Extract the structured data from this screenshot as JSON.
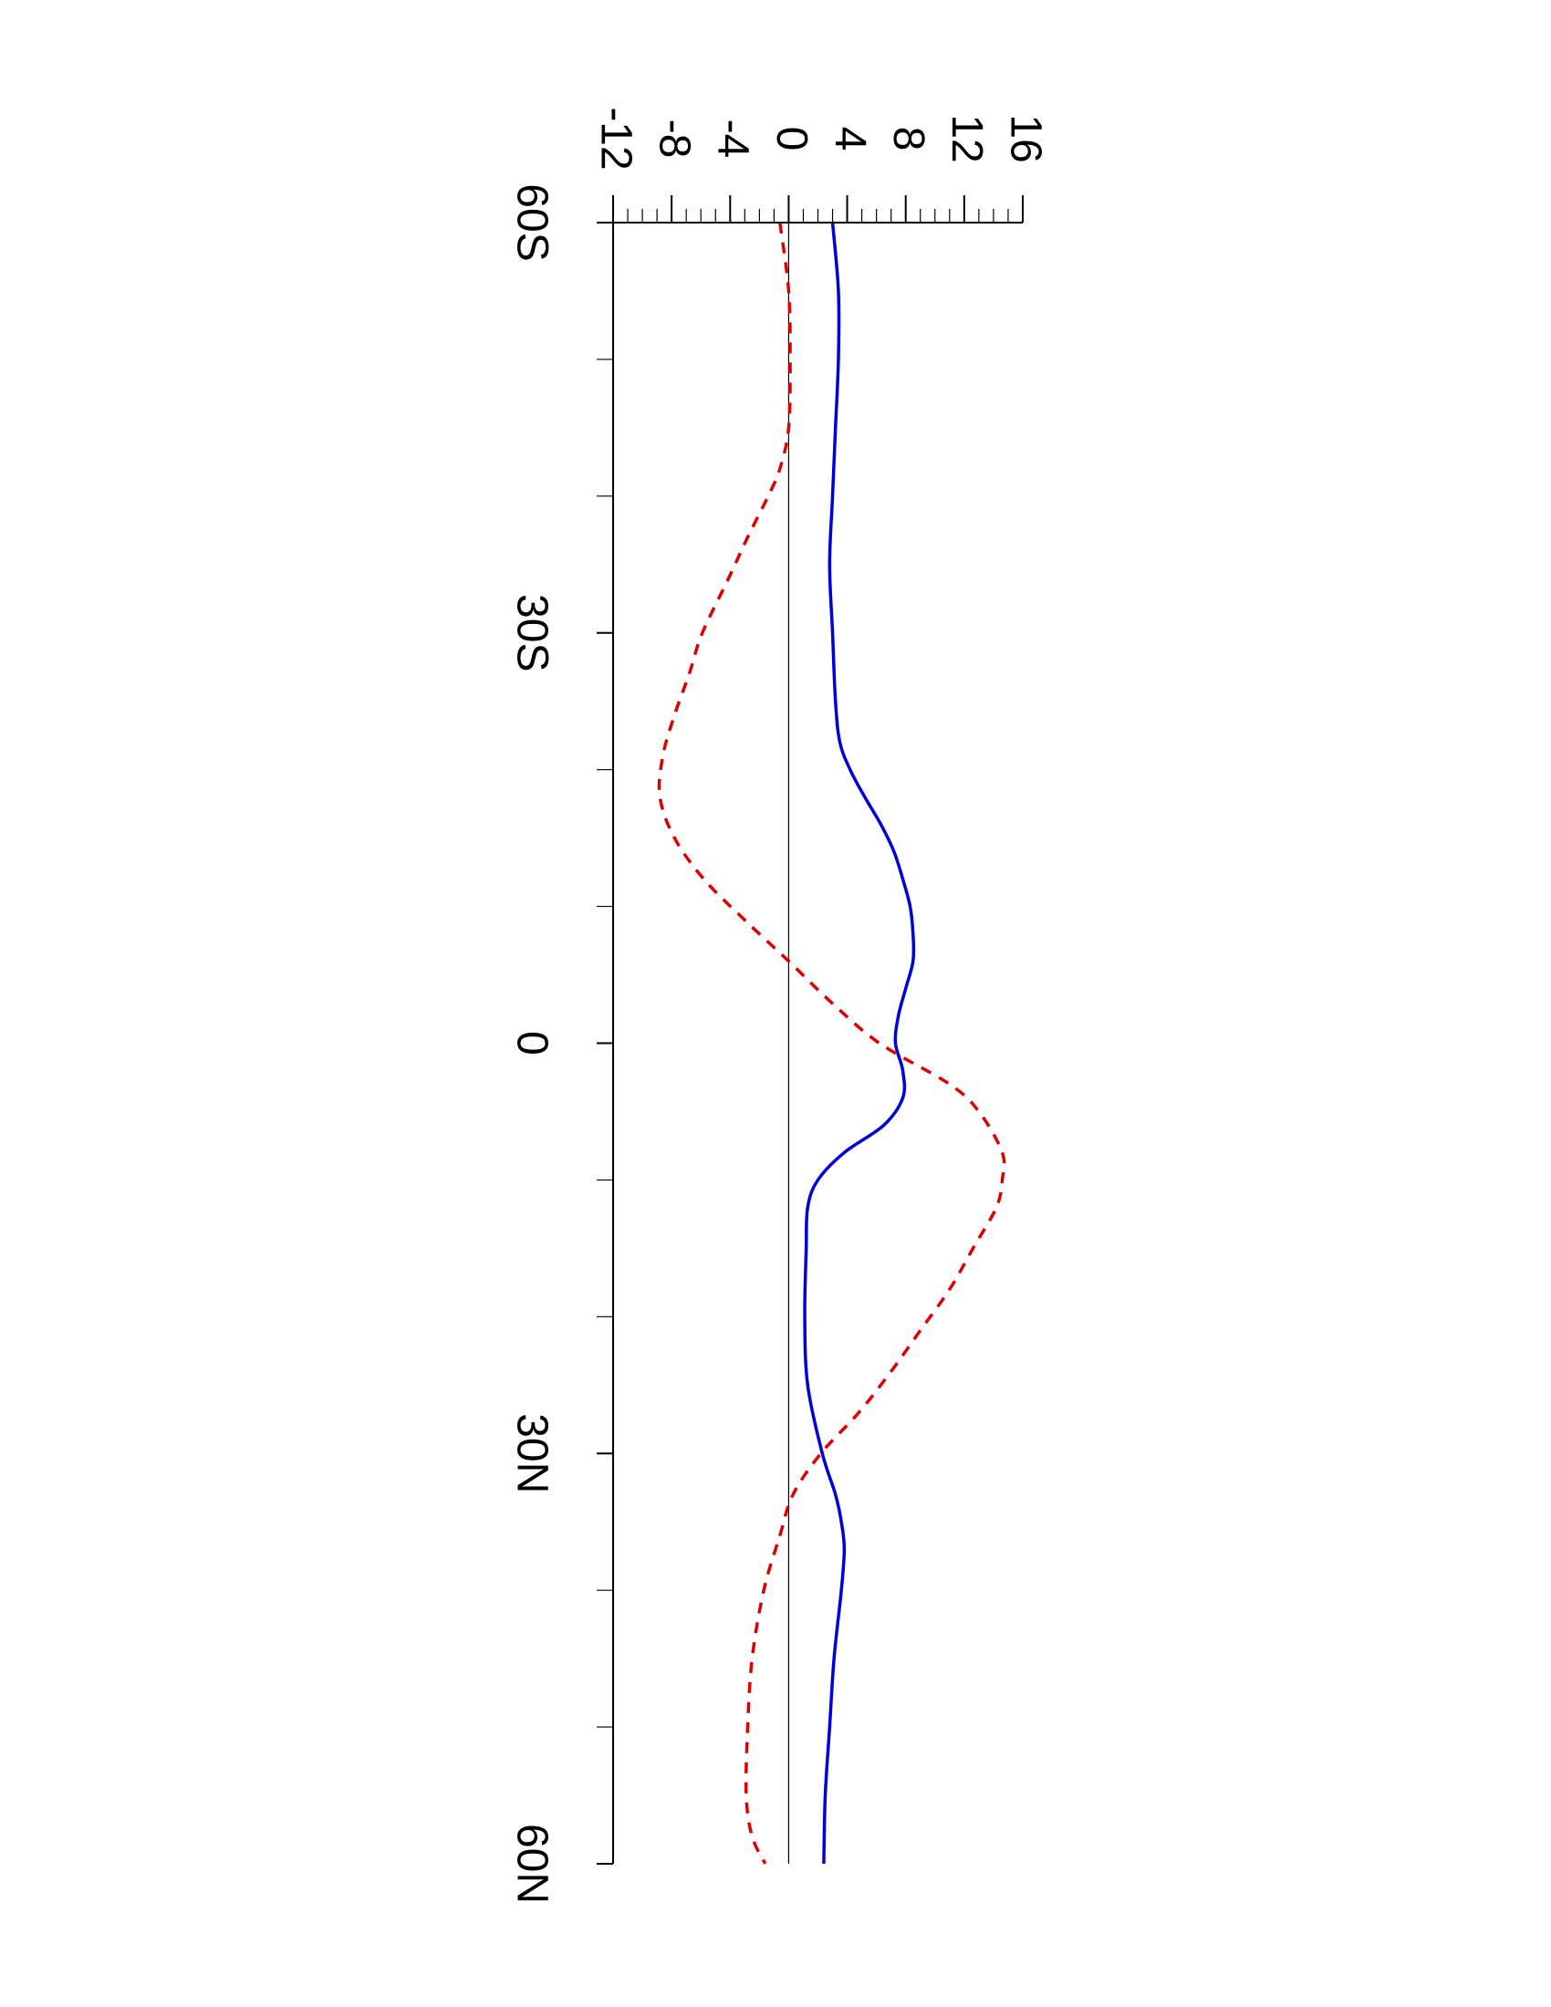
{
  "chart_data": {
    "type": "line",
    "orientation": "rotated-90-clockwise",
    "xlabel": "",
    "ylabel": "",
    "title": "",
    "xlim": [
      -60,
      60
    ],
    "ylim": [
      -12,
      16
    ],
    "x_ticks": [
      {
        "value": -60,
        "label": "60S"
      },
      {
        "value": -30,
        "label": "30S"
      },
      {
        "value": 0,
        "label": "0"
      },
      {
        "value": 30,
        "label": "30N"
      },
      {
        "value": 60,
        "label": "60N"
      }
    ],
    "x_minor_ticks": [
      -50,
      -40,
      -20,
      -10,
      10,
      20,
      40,
      50
    ],
    "y_ticks": [
      {
        "value": -12,
        "label": "-12"
      },
      {
        "value": -8,
        "label": "-8"
      },
      {
        "value": -4,
        "label": "-4"
      },
      {
        "value": 0,
        "label": "0"
      },
      {
        "value": 4,
        "label": "4"
      },
      {
        "value": 8,
        "label": "8"
      },
      {
        "value": 12,
        "label": "12"
      },
      {
        "value": 16,
        "label": "16"
      }
    ],
    "y_minor_step": 1,
    "reference_line": 0,
    "series": [
      {
        "color": "#0000dd",
        "style": "solid",
        "x": [
          -60,
          -55,
          -50,
          -45,
          -40,
          -35,
          -30,
          -25,
          -22,
          -20,
          -18,
          -16,
          -14,
          -12,
          -10,
          -8,
          -6,
          -4,
          -2,
          0,
          2,
          4,
          6,
          8,
          10,
          12,
          15,
          20,
          25,
          30,
          33,
          35,
          37,
          40,
          45,
          50,
          55,
          60
        ],
        "y": [
          3.0,
          3.4,
          3.4,
          3.2,
          3.0,
          2.8,
          3.0,
          3.2,
          3.5,
          4.2,
          5.2,
          6.3,
          7.2,
          7.8,
          8.3,
          8.5,
          8.5,
          8.0,
          7.5,
          7.3,
          7.8,
          7.8,
          6.5,
          3.8,
          2.0,
          1.3,
          1.2,
          1.1,
          1.3,
          2.3,
          3.2,
          3.6,
          3.8,
          3.6,
          3.1,
          2.8,
          2.5,
          2.4
        ]
      },
      {
        "color": "#dd0000",
        "style": "dashed",
        "x": [
          -60,
          -55,
          -50,
          -45,
          -42,
          -40,
          -37,
          -34,
          -30,
          -27,
          -24,
          -21,
          -18,
          -15,
          -12,
          -9,
          -6,
          -3,
          0,
          3,
          5,
          8,
          10,
          12,
          15,
          18,
          21,
          24,
          27,
          30,
          33,
          36,
          40,
          45,
          50,
          55,
          58,
          60
        ],
        "y": [
          -0.6,
          0.0,
          0.1,
          0.0,
          -0.6,
          -1.4,
          -2.8,
          -4.1,
          -5.9,
          -6.8,
          -7.8,
          -8.6,
          -8.8,
          -7.8,
          -5.8,
          -3.0,
          0.0,
          2.9,
          6.2,
          11.0,
          13.0,
          14.6,
          14.6,
          14.2,
          12.6,
          11.0,
          9.0,
          7.0,
          4.8,
          2.2,
          0.3,
          -0.6,
          -1.7,
          -2.5,
          -2.8,
          -2.9,
          -2.5,
          -1.6
        ]
      }
    ]
  }
}
